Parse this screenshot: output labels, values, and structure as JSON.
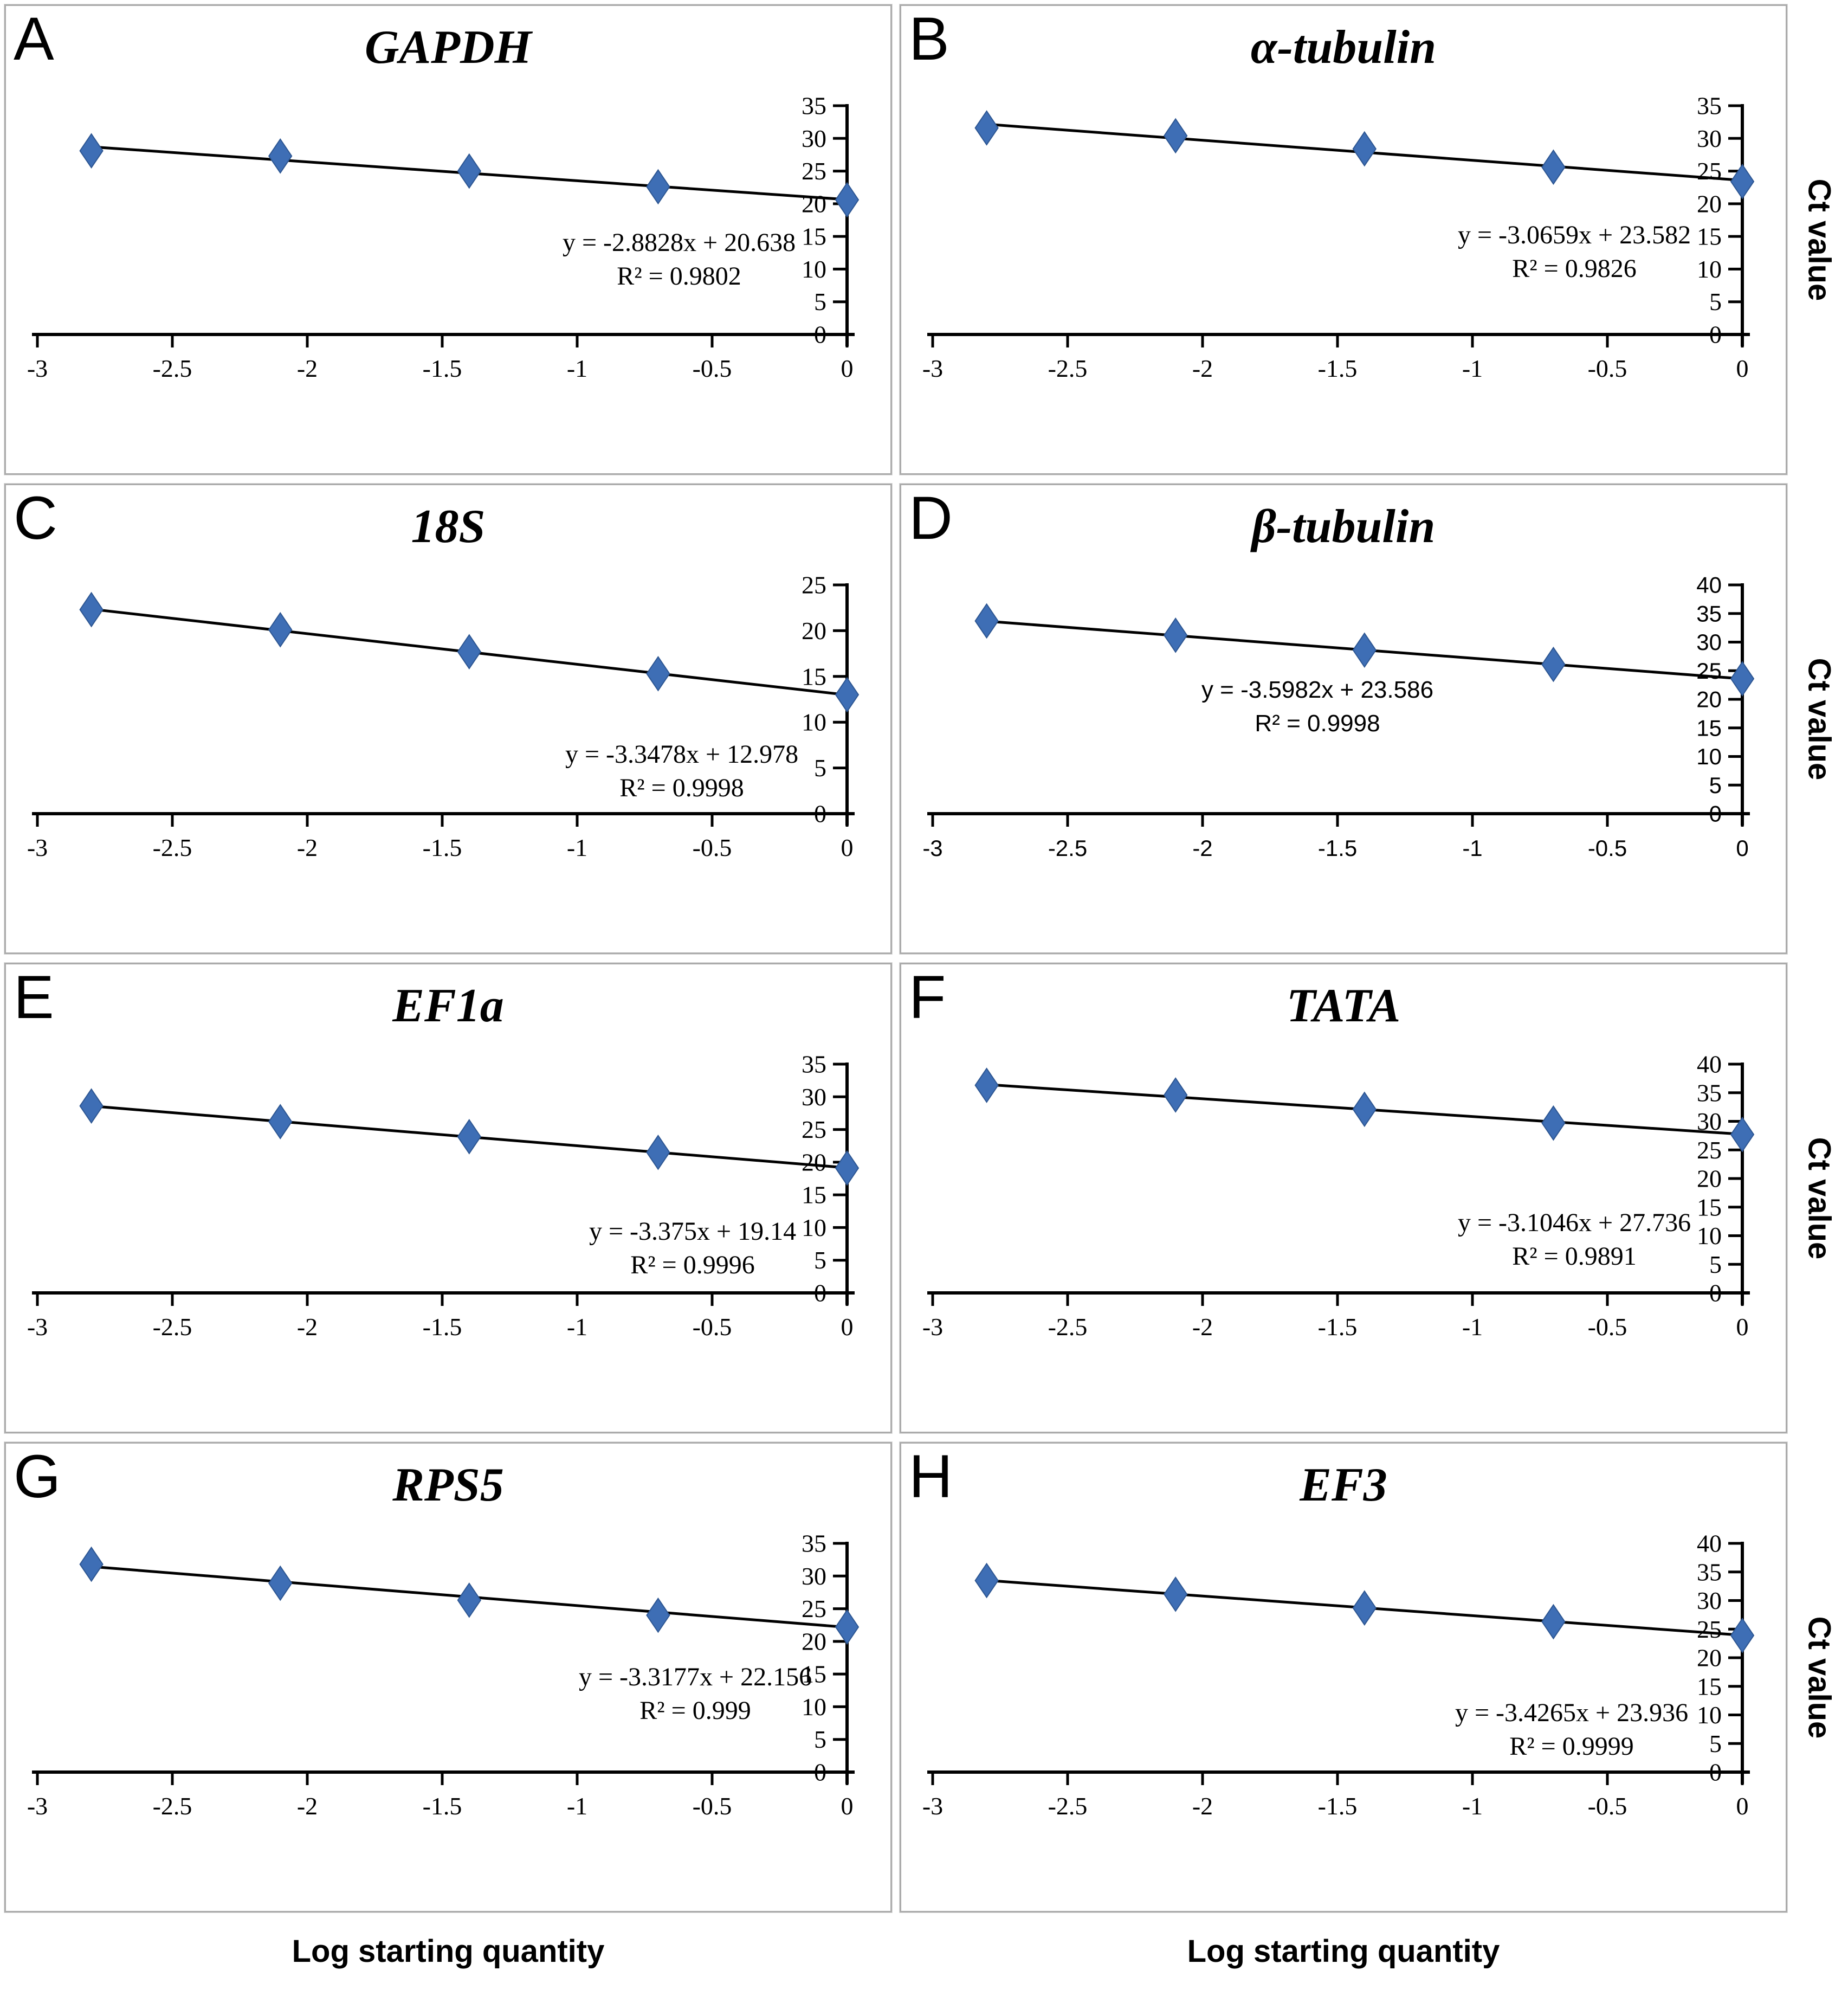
{
  "figure": {
    "x_axis_label": "Log starting quantity",
    "y_axis_label": "Ct value",
    "marker_color": "#3e6eb5",
    "marker_edge_color": "#2d5692",
    "line_color": "#000000",
    "description": "qPCR standard curves of candidate reference genes, Ct value vs log starting quantity"
  },
  "chart_data": [
    {
      "type": "scatter",
      "panel": "A",
      "title": "GAPDH",
      "trendline": {
        "equation": "y = -2.8828x + 20.638",
        "r_squared": "R² = 0.9802",
        "slope": -2.8828,
        "intercept": 20.638
      },
      "x": [
        -2.8,
        -2.1,
        -1.4,
        -0.7,
        0
      ],
      "y": [
        28.1,
        27.3,
        25.0,
        22.6,
        20.6
      ],
      "xlim": [
        -3,
        0
      ],
      "ylim": [
        0,
        35
      ],
      "x_ticks": [
        -3,
        -2.5,
        -2,
        -1.5,
        -1,
        -0.5,
        0
      ],
      "y_ticks": [
        0,
        5,
        10,
        15,
        20,
        25,
        30,
        35
      ],
      "tick_style": "serif"
    },
    {
      "type": "scatter",
      "panel": "B",
      "title": "α-tubulin",
      "trendline": {
        "equation": "y = -3.0659x + 23.582",
        "r_squared": "R² = 0.9826",
        "slope": -3.0659,
        "intercept": 23.582
      },
      "x": [
        -2.8,
        -2.1,
        -1.4,
        -0.7,
        0
      ],
      "y": [
        31.6,
        30.4,
        28.4,
        25.6,
        23.4
      ],
      "xlim": [
        -3,
        0
      ],
      "ylim": [
        0,
        35
      ],
      "x_ticks": [
        -3,
        -2.5,
        -2,
        -1.5,
        -1,
        -0.5,
        0
      ],
      "y_ticks": [
        0,
        5,
        10,
        15,
        20,
        25,
        30,
        35
      ],
      "tick_style": "serif"
    },
    {
      "type": "scatter",
      "panel": "C",
      "title": "18S",
      "trendline": {
        "equation": "y = -3.3478x + 12.978",
        "r_squared": "R² = 0.9998",
        "slope": -3.3478,
        "intercept": 12.978
      },
      "x": [
        -2.8,
        -2.1,
        -1.4,
        -0.7,
        0
      ],
      "y": [
        22.3,
        20.1,
        17.7,
        15.3,
        13.0
      ],
      "xlim": [
        -3,
        0
      ],
      "ylim": [
        0,
        25
      ],
      "x_ticks": [
        -3,
        -2.5,
        -2,
        -1.5,
        -1,
        -0.5,
        0
      ],
      "y_ticks": [
        0,
        5,
        10,
        15,
        20,
        25
      ],
      "tick_style": "serif"
    },
    {
      "type": "scatter",
      "panel": "D",
      "title": "β-tubulin",
      "trendline": {
        "equation": "y = -3.5982x + 23.586",
        "r_squared": "R² = 0.9998",
        "slope": -3.5982,
        "intercept": 23.586
      },
      "x": [
        -2.8,
        -2.1,
        -1.4,
        -0.7,
        0
      ],
      "y": [
        33.7,
        31.2,
        28.6,
        26.1,
        23.6
      ],
      "xlim": [
        -3,
        0
      ],
      "ylim": [
        0,
        40
      ],
      "x_ticks": [
        -3,
        -2.5,
        -2,
        -1.5,
        -1,
        -0.5,
        0
      ],
      "y_ticks": [
        0,
        5,
        10,
        15,
        20,
        25,
        30,
        35,
        40
      ],
      "tick_style": "sans"
    },
    {
      "type": "scatter",
      "panel": "E",
      "title": "EF1a",
      "trendline": {
        "equation": "y = -3.375x + 19.14",
        "r_squared": "R² = 0.9996",
        "slope": -3.375,
        "intercept": 19.14
      },
      "x": [
        -2.8,
        -2.1,
        -1.4,
        -0.7,
        0
      ],
      "y": [
        28.6,
        26.2,
        23.9,
        21.5,
        19.1
      ],
      "xlim": [
        -3,
        0
      ],
      "ylim": [
        0,
        35
      ],
      "x_ticks": [
        -3,
        -2.5,
        -2,
        -1.5,
        -1,
        -0.5,
        0
      ],
      "y_ticks": [
        0,
        5,
        10,
        15,
        20,
        25,
        30,
        35
      ],
      "tick_style": "serif"
    },
    {
      "type": "scatter",
      "panel": "F",
      "title": "TATA",
      "trendline": {
        "equation": "y = -3.1046x + 27.736",
        "r_squared": "R² = 0.9891",
        "slope": -3.1046,
        "intercept": 27.736
      },
      "x": [
        -2.8,
        -2.1,
        -1.4,
        -0.7,
        0
      ],
      "y": [
        36.3,
        34.6,
        32.1,
        29.7,
        27.7
      ],
      "xlim": [
        -3,
        0
      ],
      "ylim": [
        0,
        40
      ],
      "x_ticks": [
        -3,
        -2.5,
        -2,
        -1.5,
        -1,
        -0.5,
        0
      ],
      "y_ticks": [
        0,
        5,
        10,
        15,
        20,
        25,
        30,
        35,
        40
      ],
      "tick_style": "serif"
    },
    {
      "type": "scatter",
      "panel": "G",
      "title": "RPS5",
      "trendline": {
        "equation": "y = -3.3177x + 22.156",
        "r_squared": "R² = 0.999",
        "slope": -3.3177,
        "intercept": 22.156
      },
      "x": [
        -2.8,
        -2.1,
        -1.4,
        -0.7,
        0
      ],
      "y": [
        31.8,
        28.9,
        26.3,
        24.0,
        22.2
      ],
      "xlim": [
        -3,
        0
      ],
      "ylim": [
        0,
        35
      ],
      "x_ticks": [
        -3,
        -2.5,
        -2,
        -1.5,
        -1,
        -0.5,
        0
      ],
      "y_ticks": [
        0,
        5,
        10,
        15,
        20,
        25,
        30,
        35
      ],
      "tick_style": "serif"
    },
    {
      "type": "scatter",
      "panel": "H",
      "title": "EF3",
      "trendline": {
        "equation": "y = -3.4265x + 23.936",
        "r_squared": "R² = 0.9999",
        "slope": -3.4265,
        "intercept": 23.936
      },
      "x": [
        -2.8,
        -2.1,
        -1.4,
        -0.7,
        0
      ],
      "y": [
        33.5,
        31.1,
        28.7,
        26.3,
        23.9
      ],
      "xlim": [
        -3,
        0
      ],
      "ylim": [
        0,
        40
      ],
      "x_ticks": [
        -3,
        -2.5,
        -2,
        -1.5,
        -1,
        -0.5,
        0
      ],
      "y_ticks": [
        0,
        5,
        10,
        15,
        20,
        25,
        30,
        35,
        40
      ],
      "tick_style": "serif"
    }
  ]
}
